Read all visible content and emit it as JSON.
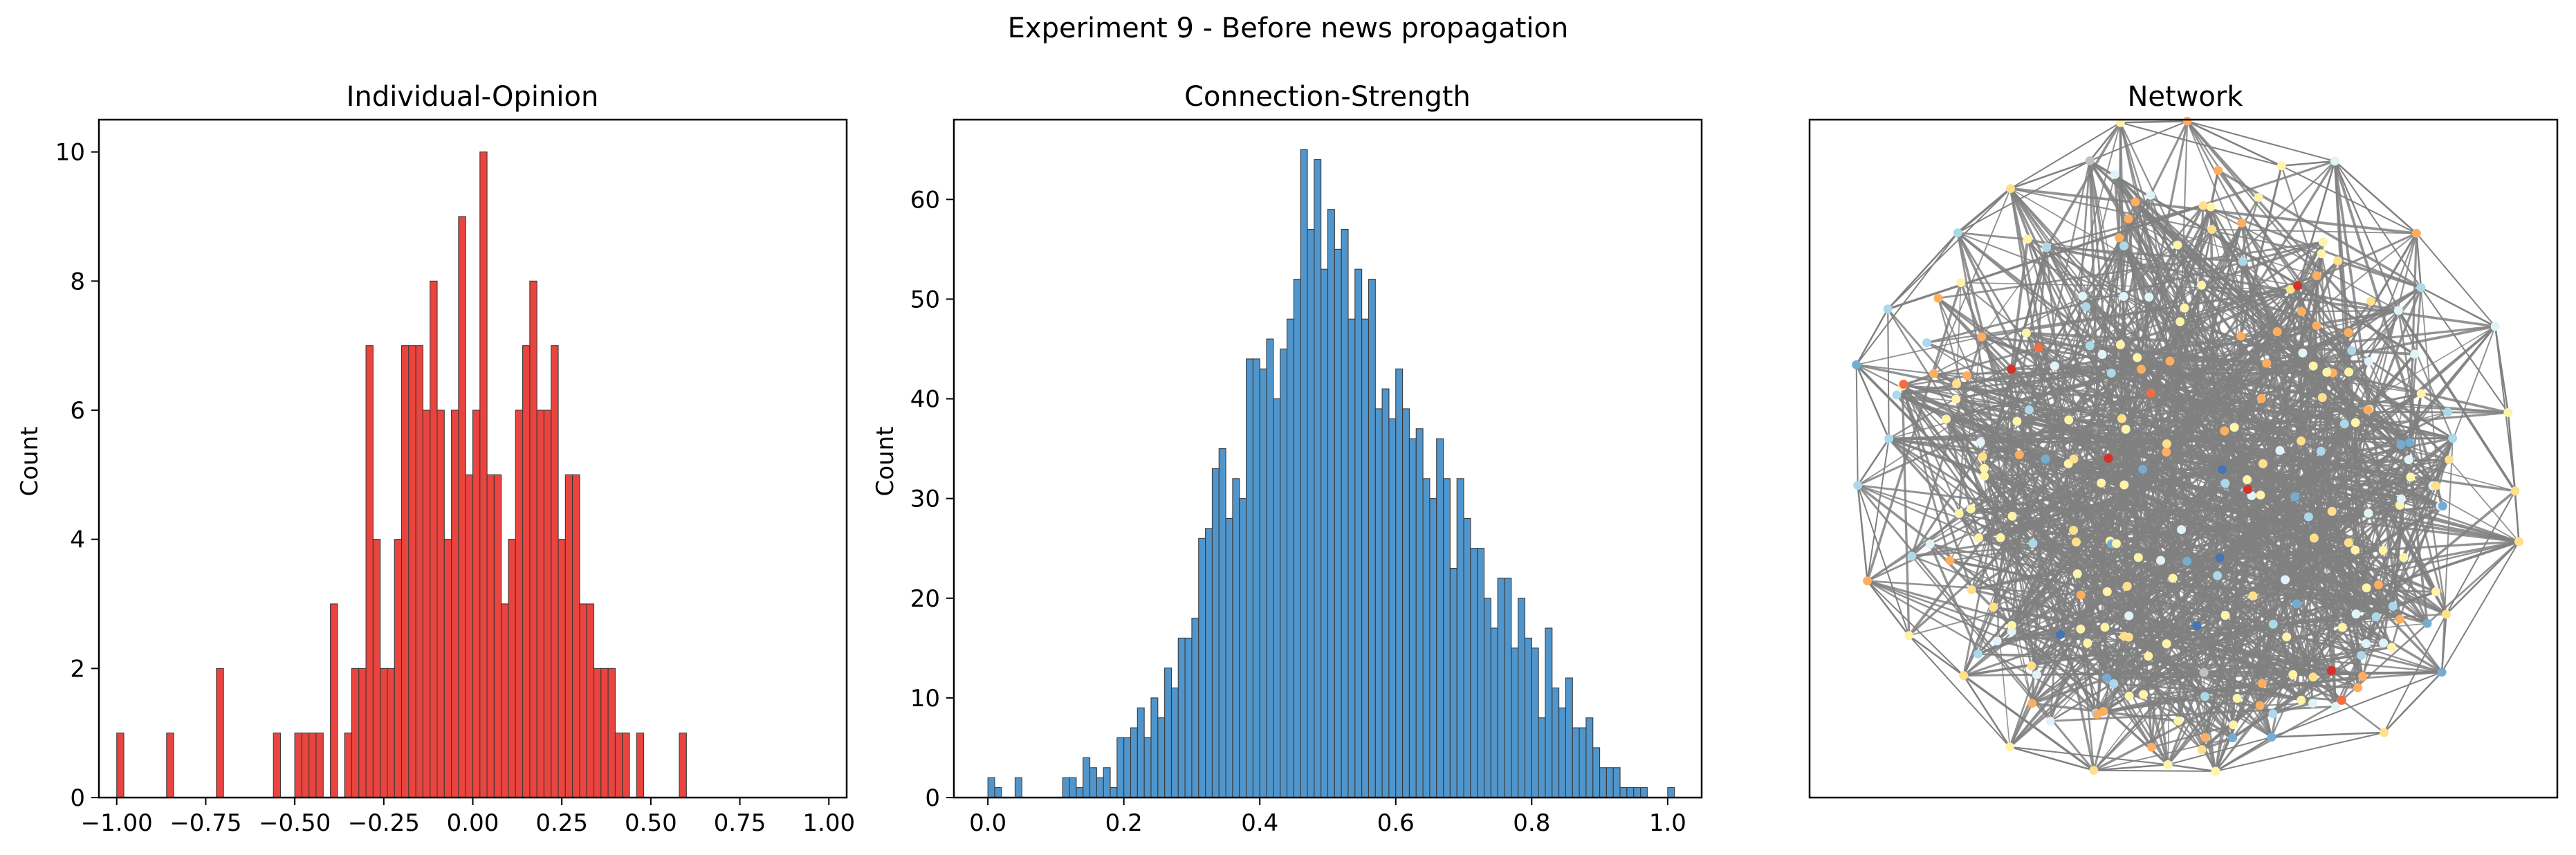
{
  "figure": {
    "suptitle": "Experiment 9 - Before news propagation"
  },
  "chart_data": [
    {
      "type": "bar",
      "title": "Individual-Opinion",
      "xlabel": "",
      "ylabel": "Count",
      "xlim": [
        -1.05,
        1.05
      ],
      "ylim": [
        0,
        10.5
      ],
      "xticks": [
        -1.0,
        -0.75,
        -0.5,
        -0.25,
        0.0,
        0.25,
        0.5,
        0.75,
        1.0
      ],
      "xtick_labels": [
        "−1.00",
        "−0.75",
        "−0.50",
        "−0.25",
        "0.00",
        "0.25",
        "0.50",
        "0.75",
        "1.00"
      ],
      "yticks": [
        0,
        2,
        4,
        6,
        8,
        10
      ],
      "ytick_labels": [
        "0",
        "2",
        "4",
        "6",
        "8",
        "10"
      ],
      "bins_start": -1.0,
      "bin_width": 0.02,
      "values": [
        1,
        0,
        0,
        0,
        0,
        0,
        0,
        1,
        0,
        0,
        0,
        0,
        0,
        0,
        2,
        0,
        0,
        0,
        0,
        0,
        0,
        0,
        1,
        0,
        0,
        1,
        1,
        1,
        1,
        0,
        3,
        0,
        1,
        2,
        2,
        7,
        4,
        2,
        2,
        4,
        7,
        7,
        7,
        6,
        8,
        6,
        4,
        6,
        9,
        5,
        6,
        10,
        5,
        5,
        3,
        4,
        6,
        7,
        8,
        6,
        6,
        7,
        4,
        5,
        5,
        3,
        3,
        2,
        2,
        2,
        1,
        1,
        0,
        1,
        0,
        0,
        0,
        0,
        0,
        1,
        0,
        0,
        0,
        0,
        0,
        0,
        0,
        0,
        0,
        0,
        0,
        0,
        0,
        0,
        0,
        0,
        0,
        0,
        0,
        0
      ],
      "bar_color": "#e8302a",
      "grid": false,
      "legend": "none"
    },
    {
      "type": "bar",
      "title": "Connection-Strength",
      "xlabel": "",
      "ylabel": "Count",
      "xlim": [
        -0.05,
        1.05
      ],
      "ylim": [
        0,
        68
      ],
      "xticks": [
        0.0,
        0.2,
        0.4,
        0.6,
        0.8,
        1.0
      ],
      "xtick_labels": [
        "0.0",
        "0.2",
        "0.4",
        "0.6",
        "0.8",
        "1.0"
      ],
      "yticks": [
        0,
        10,
        20,
        30,
        40,
        50,
        60
      ],
      "ytick_labels": [
        "0",
        "10",
        "20",
        "30",
        "40",
        "50",
        "60"
      ],
      "bins_start": 0.0,
      "bin_width": 0.01,
      "values": [
        2,
        1,
        0,
        0,
        2,
        0,
        0,
        0,
        0,
        0,
        0,
        2,
        2,
        1,
        4,
        3,
        2,
        3,
        1,
        6,
        6,
        7,
        9,
        6,
        10,
        8,
        13,
        11,
        16,
        16,
        18,
        26,
        27,
        33,
        35,
        28,
        32,
        30,
        44,
        44,
        43,
        46,
        40,
        45,
        48,
        52,
        65,
        57,
        64,
        53,
        59,
        55,
        57,
        48,
        53,
        48,
        52,
        39,
        41,
        38,
        43,
        39,
        36,
        37,
        32,
        30,
        36,
        32,
        23,
        32,
        28,
        25,
        25,
        20,
        17,
        22,
        22,
        15,
        20,
        16,
        15,
        8,
        17,
        11,
        9,
        12,
        7,
        7,
        8,
        5,
        3,
        3,
        3,
        1,
        1,
        1,
        1,
        0,
        0,
        0,
        1
      ],
      "bar_color": "#3d8bc7",
      "grid": false,
      "legend": "none"
    }
  ],
  "network": {
    "title": "Network",
    "edge_color": "#808080",
    "node_colors": [
      "#fdf3a9",
      "#fee08b",
      "#e0f3f8",
      "#abd9e9",
      "#74add1",
      "#fdae61",
      "#f46d43",
      "#d73027",
      "#4575b4",
      "#313695",
      "#c0c0c0"
    ]
  }
}
